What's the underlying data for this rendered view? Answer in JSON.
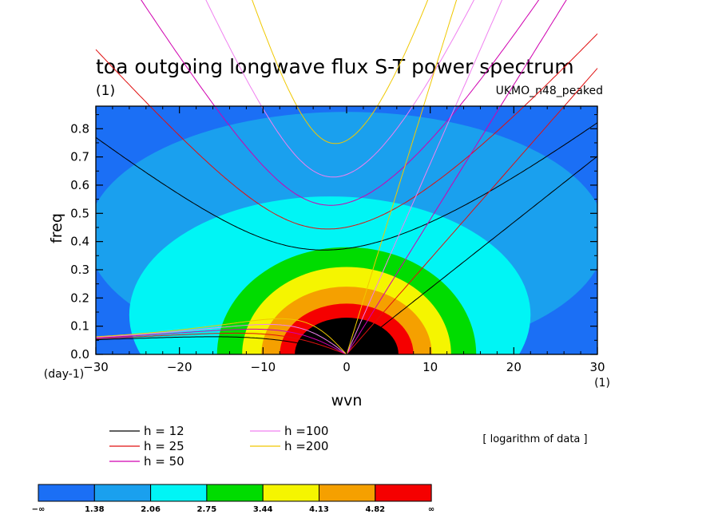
{
  "chart_data": {
    "type": "heatmap",
    "title": "toa outgoing longwave flux S-T power spectrum",
    "subtitle": "(1)",
    "model": "UKMO_n48_peaked",
    "xlabel": "wvn",
    "ylabel": "freq",
    "x_unit": "(1)",
    "y_unit": "(day-1)",
    "xlim": [
      -30,
      30
    ],
    "ylim": [
      0,
      0.88
    ],
    "xticks": [
      "−30",
      "−20",
      "−10",
      "0",
      "10",
      "20",
      "30"
    ],
    "xtick_values": [
      -30,
      -20,
      -10,
      0,
      10,
      20,
      30
    ],
    "yticks": [
      "0.0",
      "0.1",
      "0.2",
      "0.3",
      "0.4",
      "0.5",
      "0.6",
      "0.7",
      "0.8"
    ],
    "ytick_values": [
      0,
      0.1,
      0.2,
      0.3,
      0.4,
      0.5,
      0.6,
      0.7,
      0.8
    ],
    "note": "[ logarithm of data ]",
    "colorbar": {
      "labels": [
        "−∞",
        "1.38",
        "2.06",
        "2.75",
        "3.44",
        "4.13",
        "4.82",
        "∞"
      ],
      "colors": [
        "#1b6ff5",
        "#1aa0ee",
        "#00f5f5",
        "#00dc00",
        "#f5f500",
        "#f5a000",
        "#f50000"
      ]
    },
    "contour_regions": [
      {
        "level": 1,
        "cx": 0,
        "cy": 0.42,
        "rx": 31,
        "ry": 0.44
      },
      {
        "level": 2,
        "cx": -2,
        "cy": 0.14,
        "rx": 24,
        "ry": 0.42
      },
      {
        "level": 3,
        "cx": 0,
        "cy": 0,
        "rx": 15.5,
        "ry": 0.38
      },
      {
        "level": 4,
        "cx": 0,
        "cy": 0,
        "rx": 12.5,
        "ry": 0.31
      },
      {
        "level": 5,
        "cx": 0,
        "cy": 0,
        "rx": 10.2,
        "ry": 0.24
      },
      {
        "level": 6,
        "cx": 0,
        "cy": 0,
        "rx": 8,
        "ry": 0.18
      },
      {
        "level": 7,
        "cx": 0,
        "cy": 0,
        "rx": 6.2,
        "ry": 0.13
      }
    ],
    "dispersion_curves": [
      {
        "label": "h = 12",
        "h": 12,
        "color": "#000000"
      },
      {
        "label": "h = 25",
        "h": 25,
        "color": "#e01010"
      },
      {
        "label": "h = 50",
        "h": 50,
        "color": "#d000b0"
      },
      {
        "label": "h =100",
        "h": 100,
        "color": "#f080f0"
      },
      {
        "label": "h =200",
        "h": 200,
        "color": "#f0c800"
      }
    ]
  }
}
